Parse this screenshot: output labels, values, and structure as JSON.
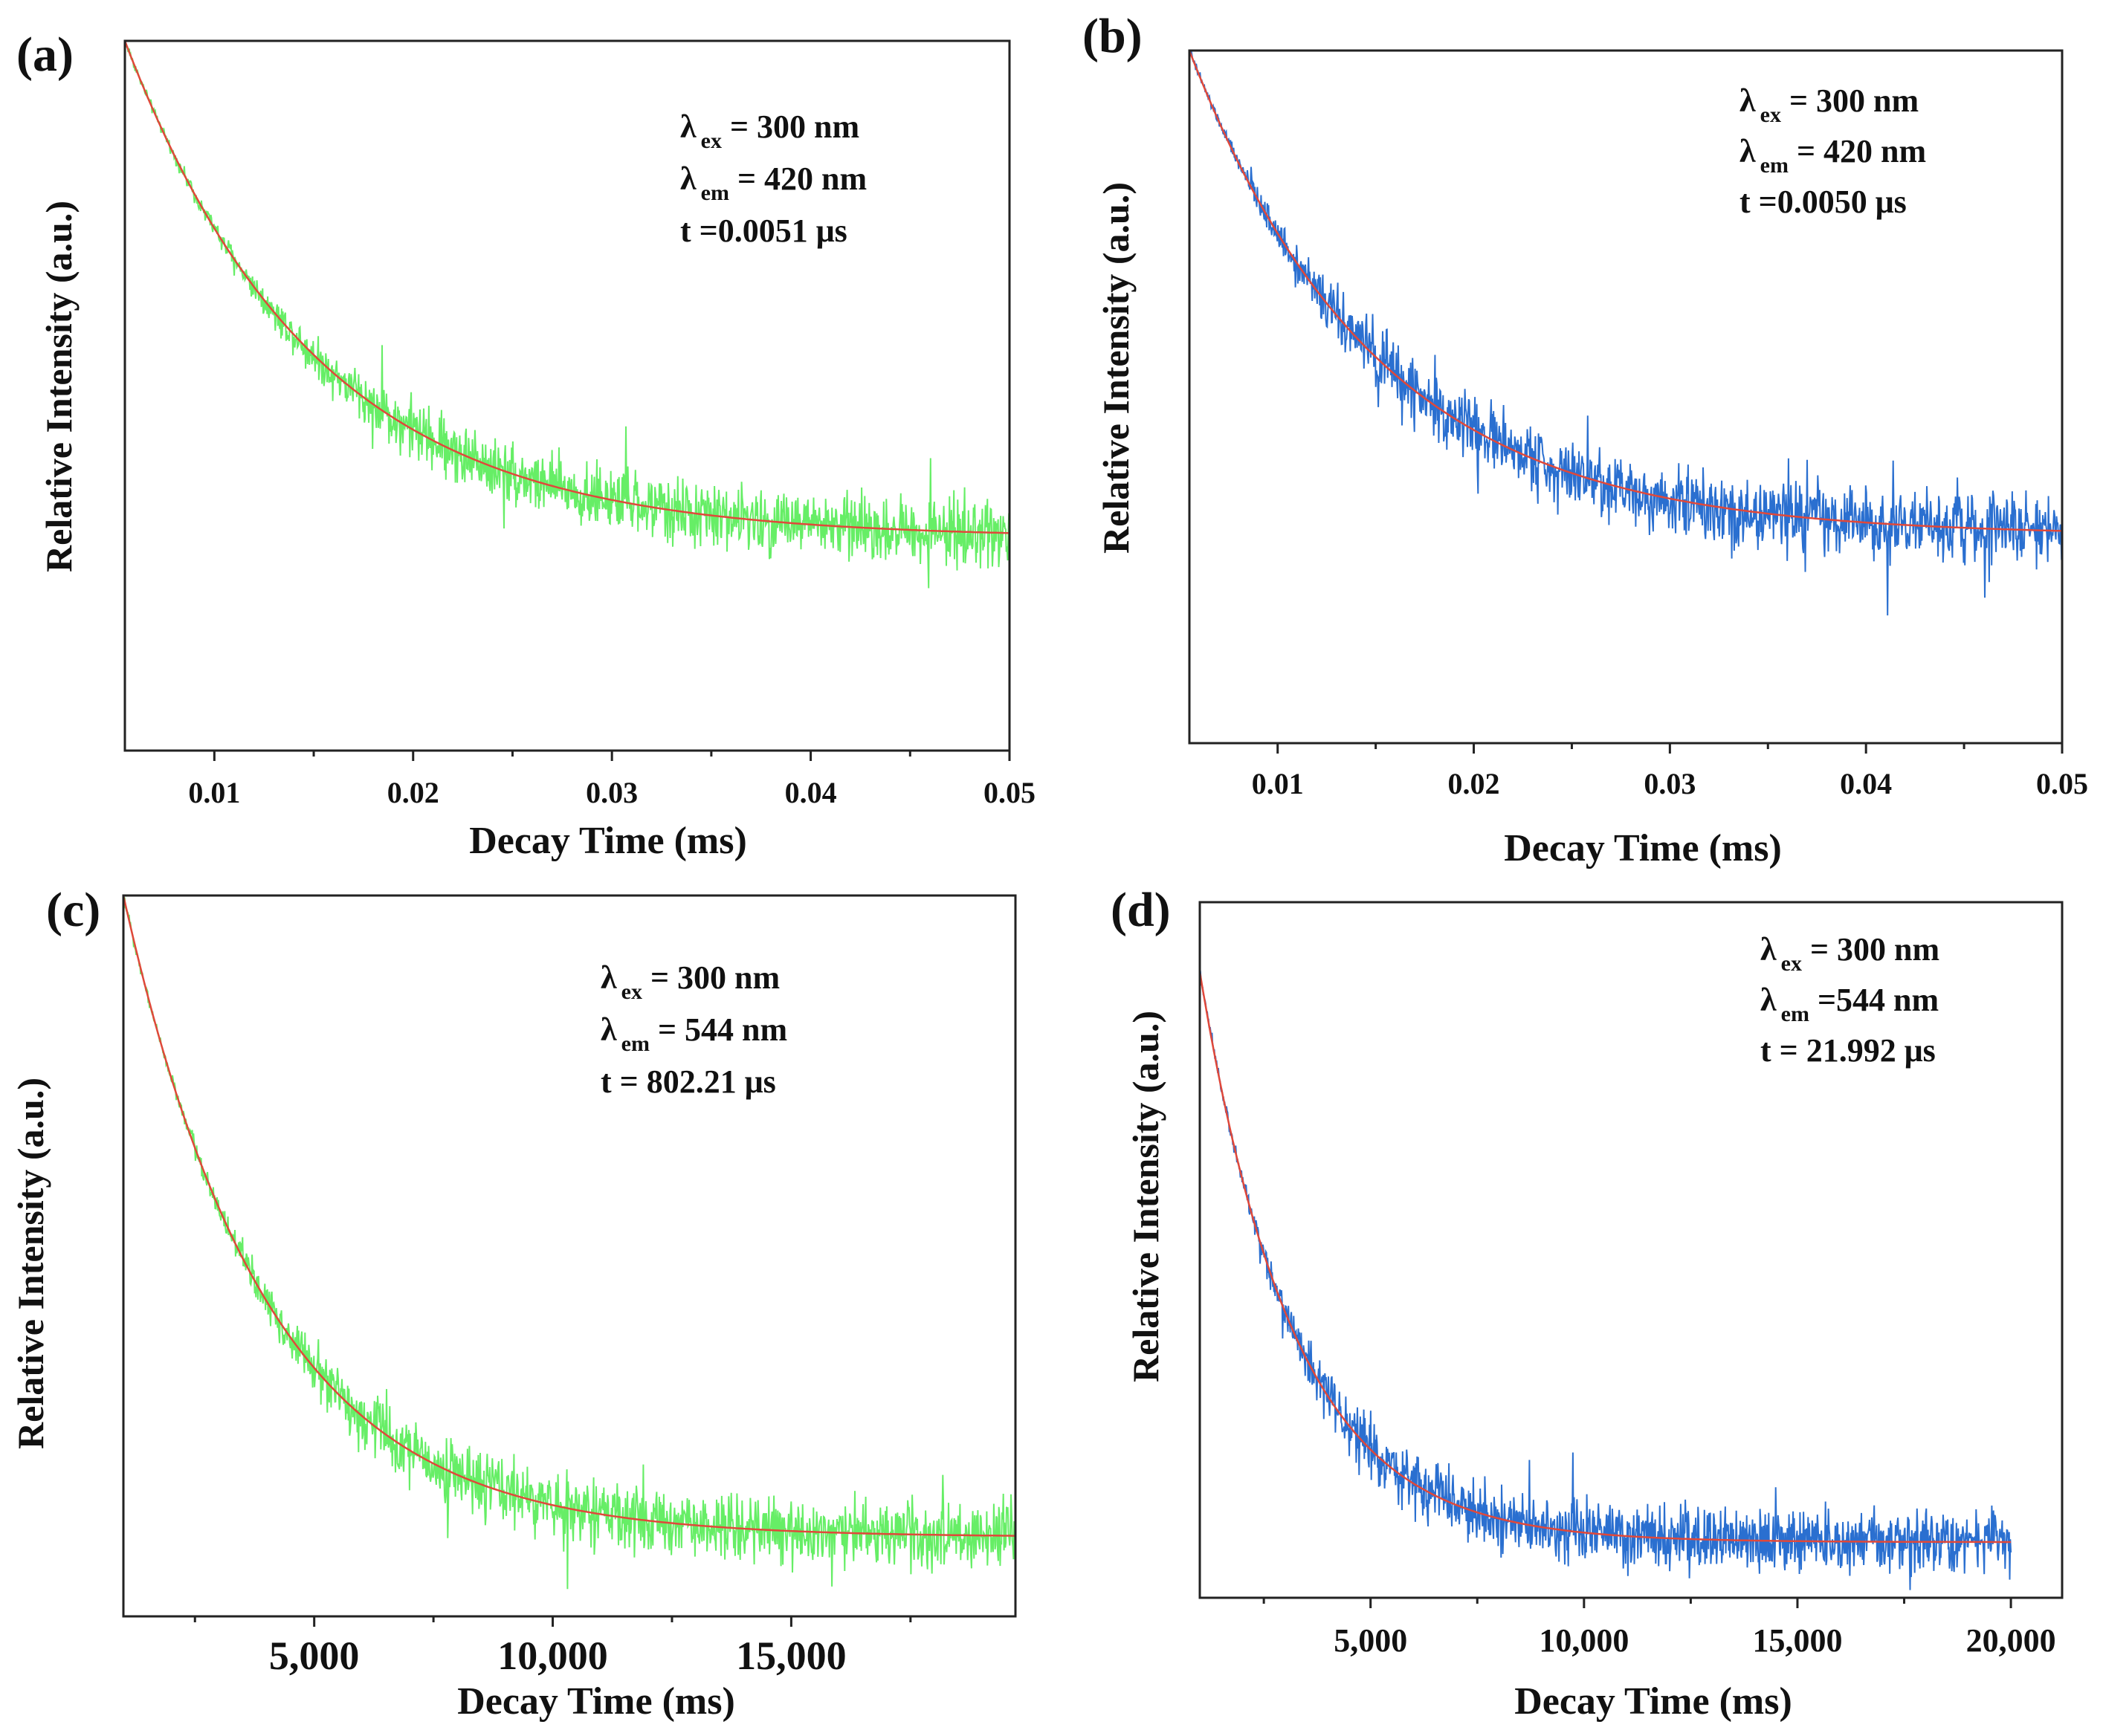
{
  "chart_data": [
    {
      "type": "line",
      "panel_label": "(a)",
      "xlabel": "Decay Time (ms)",
      "ylabel": "Relative Intensity (a.u.)",
      "xlim": [
        0.0055,
        0.05
      ],
      "ylim": [
        0,
        1
      ],
      "xticks": [
        0.01,
        0.02,
        0.03,
        0.04,
        0.05
      ],
      "xtick_labels": [
        "0.01",
        "0.02",
        "0.03",
        "0.04",
        "0.05"
      ],
      "minor_xticks": [
        0.015,
        0.025,
        0.035,
        0.045
      ],
      "annotations": [
        {
          "symbol": "λ",
          "sub": "ex",
          "text": " = 300 nm"
        },
        {
          "symbol": "λ",
          "sub": "em",
          "text": " = 420 nm"
        },
        {
          "symbol": "",
          "sub": "",
          "text": "t =0.0051 μs"
        }
      ],
      "series": [
        {
          "role": "data",
          "color": "#66ee66",
          "noise": 0.12,
          "noise_start": 0.02,
          "decay": {
            "x0": 0.0055,
            "y0": 1.0,
            "baseline": 0.3,
            "tau": 0.0095
          },
          "x_end": 0.05
        },
        {
          "role": "fit",
          "color": "#e0483a",
          "decay": {
            "x0": 0.0055,
            "y0": 1.0,
            "baseline": 0.3,
            "tau": 0.0095
          },
          "x_end": 0.05
        }
      ]
    },
    {
      "type": "line",
      "panel_label": "(b)",
      "xlabel": "Decay Time (ms)",
      "ylabel": "Relative Intensity (a.u.)",
      "xlim": [
        0.0055,
        0.05
      ],
      "ylim": [
        0,
        1
      ],
      "xticks": [
        0.01,
        0.02,
        0.03,
        0.04,
        0.05
      ],
      "xtick_labels": [
        "0.01",
        "0.02",
        "0.03",
        "0.04",
        "0.05"
      ],
      "minor_xticks": [
        0.015,
        0.025,
        0.035,
        0.045
      ],
      "annotations": [
        {
          "symbol": "λ",
          "sub": "ex",
          "text": " = 300 nm"
        },
        {
          "symbol": "λ",
          "sub": "em",
          "text": " = 420 nm"
        },
        {
          "symbol": "",
          "sub": "",
          "text": "t =0.0050 μs"
        }
      ],
      "series": [
        {
          "role": "data",
          "color": "#2a6fd0",
          "noise": 0.13,
          "noise_start": 0.015,
          "decay": {
            "x0": 0.0055,
            "y0": 1.0,
            "baseline": 0.3,
            "tau": 0.0095
          },
          "x_end": 0.05
        },
        {
          "role": "fit",
          "color": "#e0483a",
          "decay": {
            "x0": 0.0055,
            "y0": 1.0,
            "baseline": 0.3,
            "tau": 0.0095
          },
          "x_end": 0.05
        }
      ]
    },
    {
      "type": "line",
      "panel_label": "(c)",
      "xlabel": "Decay Time (ms)",
      "ylabel": "Relative Intensity (a.u.)",
      "xlim": [
        1000,
        19700
      ],
      "ylim": [
        0,
        1
      ],
      "xticks": [
        5000,
        10000,
        15000
      ],
      "xtick_labels": [
        "5,000",
        "10,000",
        "15,000"
      ],
      "minor_xticks": [
        2500,
        7500,
        12500,
        17500
      ],
      "annotations": [
        {
          "symbol": "λ",
          "sub": "ex",
          "text": " = 300 nm"
        },
        {
          "symbol": "λ",
          "sub": "em",
          "text": " = 544 nm"
        },
        {
          "symbol": "",
          "sub": "",
          "text": "t = 802.21 μs"
        }
      ],
      "series": [
        {
          "role": "data",
          "color": "#66ee66",
          "noise": 0.12,
          "noise_start": 6000,
          "decay": {
            "x0": 1000,
            "y0": 1.0,
            "baseline": 0.11,
            "tau": 3000
          },
          "x_end": 19700
        },
        {
          "role": "fit",
          "color": "#e0483a",
          "decay": {
            "x0": 1000,
            "y0": 1.0,
            "baseline": 0.11,
            "tau": 3000
          },
          "x_end": 19700
        }
      ]
    },
    {
      "type": "line",
      "panel_label": "(d)",
      "xlabel": "Decay Time (ms)",
      "ylabel": "Relative Intensity (a.u.)",
      "xlim": [
        1000,
        21200
      ],
      "ylim": [
        0,
        1
      ],
      "xticks": [
        5000,
        10000,
        15000,
        20000
      ],
      "xtick_labels": [
        "5,000",
        "10,000",
        "15,000",
        "20,000"
      ],
      "minor_xticks": [
        2500,
        7500,
        12500,
        17500
      ],
      "annotations": [
        {
          "symbol": "λ",
          "sub": "ex",
          "text": " = 300 nm"
        },
        {
          "symbol": "λ",
          "sub": "em",
          "text": " =544  nm"
        },
        {
          "symbol": "",
          "sub": "",
          "text": "t = 21.992 μs"
        }
      ],
      "series": [
        {
          "role": "data",
          "color": "#2a6fd0",
          "noise": 0.12,
          "noise_start": 4500,
          "decay": {
            "x0": 1000,
            "y0": 0.9,
            "baseline": 0.08,
            "tau": 2200
          },
          "x_end": 20000
        },
        {
          "role": "fit",
          "color": "#e0483a",
          "decay": {
            "x0": 1000,
            "y0": 0.9,
            "baseline": 0.08,
            "tau": 2200
          },
          "x_end": 20000
        }
      ]
    }
  ]
}
